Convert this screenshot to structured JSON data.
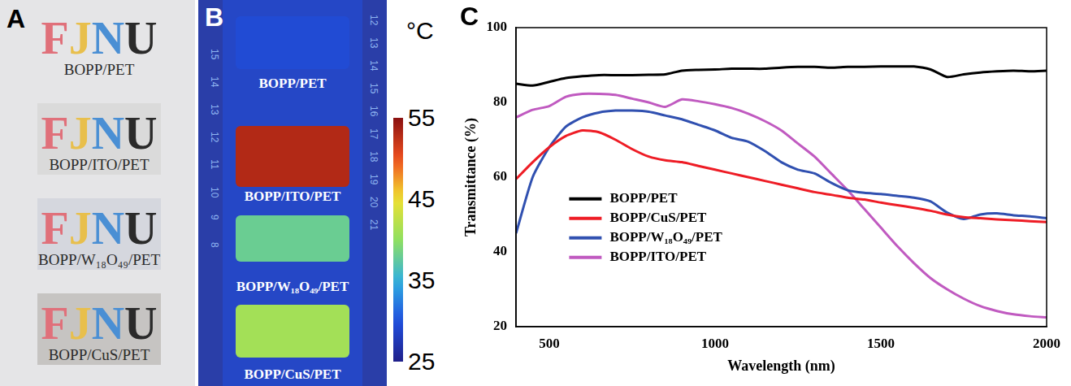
{
  "panel_letters": [
    "A",
    "B",
    "C"
  ],
  "photo_panel": {
    "word": [
      "F",
      "J",
      "N",
      "U"
    ],
    "colors": [
      "#e0707a",
      "#e8bf4c",
      "#4a8fd4",
      "#2a2a2a"
    ],
    "samples": [
      "BOPP/PET",
      "BOPP/ITO/PET",
      "BOPP/W₁₈O₄₉/PET",
      "BOPP/CuS/PET"
    ]
  },
  "thermal_panel": {
    "unit": "°C",
    "color_range": [
      25,
      55
    ],
    "colorbar_ticks": [
      25,
      35,
      45,
      55
    ],
    "samples": [
      {
        "label": "BOPP/PET",
        "temperature": 30
      },
      {
        "label": "BOPP/ITO/PET",
        "temperature": 53
      },
      {
        "label": "BOPP/W₁₈O₄₉/PET",
        "temperature": 38
      },
      {
        "label": "BOPP/CuS/PET",
        "temperature": 41
      }
    ],
    "ruler_left": [
      15,
      14,
      13,
      12,
      11,
      10,
      9,
      8
    ],
    "ruler_right": [
      12,
      13,
      14,
      15,
      16,
      17,
      18,
      19,
      20,
      21
    ]
  },
  "chart_data": {
    "type": "line",
    "x_label": "Wavelength (nm)",
    "y_label": "Transmittance (%)",
    "x": [
      400,
      450,
      500,
      550,
      600,
      650,
      700,
      750,
      800,
      850,
      900,
      950,
      1000,
      1050,
      1100,
      1150,
      1200,
      1250,
      1300,
      1350,
      1400,
      1450,
      1500,
      1550,
      1600,
      1650,
      1700,
      1750,
      1800,
      1850,
      1900,
      1950,
      2000
    ],
    "series": [
      {
        "name": "BOPP/PET",
        "color": "#000000",
        "values": [
          85,
          84.5,
          85.5,
          86.5,
          87,
          87.3,
          87.3,
          87.3,
          87.4,
          87.5,
          88.5,
          88.7,
          88.8,
          89,
          89,
          89,
          89.3,
          89.5,
          89.5,
          89.3,
          89.5,
          89.5,
          89.6,
          89.6,
          89.6,
          88.8,
          86.8,
          87.5,
          88,
          88.3,
          88.5,
          88.3,
          88.5
        ]
      },
      {
        "name": "BOPP/CuS/PET",
        "color": "#ee1c25",
        "values": [
          59.5,
          64,
          68,
          71,
          72.5,
          72,
          70,
          67.5,
          65.5,
          64.5,
          64,
          63,
          62,
          61,
          60,
          59,
          58,
          57,
          56,
          55.3,
          54.5,
          54,
          53.2,
          52.5,
          51.8,
          51,
          50,
          49.3,
          49,
          48.7,
          48.5,
          48.2,
          48
        ]
      },
      {
        "name": "BOPP/W₁₈O₄₉/PET",
        "color": "#3050b0",
        "values": [
          45,
          60,
          68,
          73.5,
          76,
          77.3,
          77.8,
          77.8,
          77.5,
          76.5,
          75.5,
          74,
          72.5,
          70.5,
          69.5,
          67,
          64,
          62,
          61,
          58.5,
          56.5,
          55.8,
          55.5,
          55,
          54.5,
          53.5,
          50.5,
          48.8,
          50,
          50.3,
          49.8,
          49.5,
          49
        ]
      },
      {
        "name": "BOPP/ITO/PET",
        "color": "#c05ac0",
        "values": [
          76,
          78,
          79,
          81.5,
          82.3,
          82.3,
          82,
          81,
          80,
          78.8,
          80.8,
          80.3,
          79.5,
          78.5,
          77,
          75,
          72.5,
          69,
          65.5,
          61,
          56.5,
          51.5,
          46.5,
          41.5,
          37,
          33,
          30,
          27.5,
          25.5,
          24.2,
          23.3,
          22.8,
          22.5
        ]
      }
    ],
    "xlim": [
      400,
      2000
    ],
    "xticks": [
      500,
      1000,
      1500,
      2000
    ],
    "ylim": [
      20,
      100
    ],
    "yticks": [
      20,
      40,
      60,
      80,
      100
    ],
    "grid": false,
    "legend": "lower left"
  }
}
